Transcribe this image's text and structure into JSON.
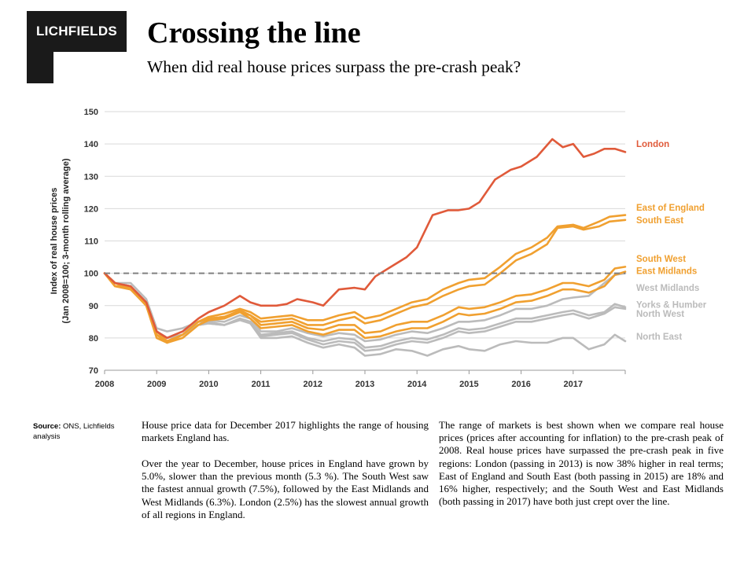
{
  "logo": {
    "text": "LICHFIELDS"
  },
  "header": {
    "title": "Crossing the line",
    "subtitle": "When did real house prices surpass the pre-crash peak?"
  },
  "source": {
    "label": "Source:",
    "text": "ONS, Lichfields analysis"
  },
  "text": {
    "p1": "House price data for December 2017 highlights the range of housing markets England has.",
    "p2": "Over the year to December, house prices in England have grown by 5.0%, slower than the previous month (5.3 %). The South West saw the fastest annual growth (7.5%), followed by the East Midlands and West Midlands (6.3%). London (2.5%) has the slowest annual growth of all regions in England.",
    "p3": "The range of markets is best shown when we compare real house prices (prices after accounting for inflation) to the pre-crash peak of 2008. Real house prices have surpassed the pre-crash peak in five regions: London (passing in 2013) is now 38% higher in real terms; East of England and South East (both passing in 2015) are 18% and 16% higher, respectively; and the South West and East Midlands (both passing in 2017) have both just crept over the line."
  },
  "chart_data": {
    "type": "line",
    "ylabel": "Index of real house prices (Jan 2008=100; 3-month rolling average)",
    "xlabel": "",
    "ylim": [
      70,
      150
    ],
    "yticks": [
      70,
      80,
      90,
      100,
      110,
      120,
      130,
      140,
      150
    ],
    "xlim": [
      2008,
      2018
    ],
    "xticks": [
      "2008",
      "2009",
      "2010",
      "2011",
      "2012",
      "2013",
      "2014",
      "2015",
      "2016",
      "2017"
    ],
    "reference_line": {
      "y": 100,
      "style": "dashed"
    },
    "grid": "horizontal",
    "colors": {
      "london": "#e05a3a",
      "orange": "#f0a030",
      "grey": "#bbbbbb",
      "reference": "#808080"
    },
    "series": [
      {
        "name": "London",
        "color": "#e05a3a",
        "x": [
          2008,
          2008.2,
          2008.5,
          2008.8,
          2009.0,
          2009.2,
          2009.5,
          2009.8,
          2010.0,
          2010.3,
          2010.6,
          2010.8,
          2011.0,
          2011.3,
          2011.5,
          2011.7,
          2012.0,
          2012.2,
          2012.5,
          2012.8,
          2013.0,
          2013.2,
          2013.5,
          2013.8,
          2014.0,
          2014.3,
          2014.6,
          2014.8,
          2015.0,
          2015.2,
          2015.5,
          2015.8,
          2016.0,
          2016.3,
          2016.6,
          2016.8,
          2017.0,
          2017.2,
          2017.4,
          2017.6,
          2017.8,
          2018.0
        ],
        "values": [
          100,
          97,
          96,
          91,
          82,
          80,
          82,
          86,
          88,
          90,
          93,
          91,
          90,
          90,
          90.5,
          92,
          91,
          90,
          95,
          95.5,
          95,
          99,
          102,
          105,
          108,
          118,
          119.5,
          119.5,
          120,
          122,
          129,
          132,
          133,
          136,
          141.5,
          139,
          140,
          136,
          137,
          138.5,
          138.5,
          137.5
        ]
      },
      {
        "name": "East of England",
        "color": "#f0a030",
        "x": [
          2008,
          2008.2,
          2008.5,
          2008.8,
          2009.0,
          2009.2,
          2009.5,
          2009.8,
          2010.0,
          2010.3,
          2010.6,
          2010.8,
          2011.0,
          2011.3,
          2011.6,
          2011.9,
          2012.2,
          2012.5,
          2012.8,
          2013.0,
          2013.3,
          2013.6,
          2013.9,
          2014.2,
          2014.5,
          2014.8,
          2015.0,
          2015.3,
          2015.6,
          2015.9,
          2016.2,
          2016.5,
          2016.7,
          2017.0,
          2017.2,
          2017.5,
          2017.7,
          2018.0
        ],
        "values": [
          100,
          97,
          95,
          91,
          82,
          79,
          81,
          85,
          86.5,
          87.5,
          89,
          88,
          86,
          86.5,
          87,
          85.5,
          85.5,
          87,
          88,
          86,
          87,
          89,
          91,
          92,
          95,
          97,
          98,
          98.5,
          102,
          106,
          108,
          111,
          114.5,
          115,
          114,
          116,
          117.5,
          118
        ]
      },
      {
        "name": "South East",
        "color": "#f0a030",
        "x": [
          2008,
          2008.2,
          2008.5,
          2008.8,
          2009.0,
          2009.2,
          2009.5,
          2009.8,
          2010.0,
          2010.3,
          2010.6,
          2010.8,
          2011.0,
          2011.3,
          2011.6,
          2011.9,
          2012.2,
          2012.5,
          2012.8,
          2013.0,
          2013.3,
          2013.6,
          2013.9,
          2014.2,
          2014.5,
          2014.8,
          2015.0,
          2015.3,
          2015.6,
          2015.9,
          2016.2,
          2016.5,
          2016.7,
          2017.0,
          2017.2,
          2017.5,
          2017.7,
          2018.0
        ],
        "values": [
          100,
          96,
          95,
          90,
          81,
          79,
          81,
          85,
          86,
          86.5,
          88,
          87,
          85,
          85.5,
          86,
          84,
          84,
          85.5,
          86.5,
          84.5,
          85.5,
          87.5,
          89.5,
          90.5,
          93,
          95,
          96,
          96.5,
          100,
          104,
          106,
          109,
          114,
          114.5,
          113.5,
          114.5,
          116,
          116.5
        ]
      },
      {
        "name": "South West",
        "color": "#f0a030",
        "x": [
          2008,
          2008.2,
          2008.5,
          2008.8,
          2009.0,
          2009.2,
          2009.5,
          2009.8,
          2010.0,
          2010.3,
          2010.6,
          2010.8,
          2011.0,
          2011.3,
          2011.6,
          2011.9,
          2012.2,
          2012.5,
          2012.8,
          2013.0,
          2013.3,
          2013.6,
          2013.9,
          2014.2,
          2014.5,
          2014.8,
          2015.0,
          2015.3,
          2015.6,
          2015.9,
          2016.2,
          2016.5,
          2016.8,
          2017.0,
          2017.3,
          2017.6,
          2017.8,
          2018.0
        ],
        "values": [
          100,
          96,
          95.5,
          90,
          81,
          78.5,
          81,
          85,
          86,
          86.5,
          88.5,
          87,
          84,
          84.5,
          85,
          83,
          82.5,
          84,
          84,
          81.5,
          82,
          84,
          85,
          85,
          87,
          89.5,
          89,
          89.5,
          91,
          93,
          93.5,
          95,
          97,
          97,
          96,
          98,
          101.5,
          102
        ]
      },
      {
        "name": "East Midlands",
        "color": "#f0a030",
        "x": [
          2008,
          2008.2,
          2008.5,
          2008.8,
          2009.0,
          2009.2,
          2009.5,
          2009.8,
          2010.0,
          2010.3,
          2010.6,
          2010.8,
          2011.0,
          2011.3,
          2011.6,
          2011.9,
          2012.2,
          2012.5,
          2012.8,
          2013.0,
          2013.3,
          2013.6,
          2013.9,
          2014.2,
          2014.5,
          2014.8,
          2015.0,
          2015.3,
          2015.6,
          2015.9,
          2016.2,
          2016.5,
          2016.8,
          2017.0,
          2017.3,
          2017.6,
          2017.8,
          2018.0
        ],
        "values": [
          100,
          96,
          95.5,
          90,
          80,
          78.5,
          80,
          84,
          85.5,
          86,
          88,
          86,
          83,
          83.5,
          84,
          82,
          81,
          82.5,
          82.5,
          80,
          80.5,
          82,
          83,
          83,
          85,
          87.5,
          87,
          87.5,
          89,
          91,
          91.5,
          93,
          95,
          95,
          94,
          96,
          99.5,
          100.5
        ]
      },
      {
        "name": "West Midlands",
        "color": "#bbbbbb",
        "x": [
          2008,
          2008.2,
          2008.5,
          2008.8,
          2009.0,
          2009.2,
          2009.5,
          2009.8,
          2010.0,
          2010.3,
          2010.6,
          2010.8,
          2011.0,
          2011.3,
          2011.6,
          2011.9,
          2012.2,
          2012.5,
          2012.8,
          2013.0,
          2013.3,
          2013.6,
          2013.9,
          2014.2,
          2014.5,
          2014.8,
          2015.0,
          2015.3,
          2015.6,
          2015.9,
          2016.2,
          2016.5,
          2016.8,
          2017.0,
          2017.3,
          2017.6,
          2017.8,
          2018.0
        ],
        "values": [
          100,
          97,
          96,
          91,
          82,
          80,
          82,
          85,
          85.5,
          85,
          87,
          86,
          82,
          82,
          83,
          81.5,
          80.5,
          81.5,
          81,
          79,
          79.5,
          81,
          82,
          81.5,
          83,
          85,
          85,
          85.5,
          87,
          89,
          89,
          90,
          92,
          92.5,
          93,
          97,
          99.5,
          100
        ]
      },
      {
        "name": "Yorks & Humber",
        "color": "#bbbbbb",
        "x": [
          2008,
          2008.2,
          2008.5,
          2008.8,
          2009.0,
          2009.2,
          2009.5,
          2009.8,
          2010.0,
          2010.3,
          2010.6,
          2010.8,
          2011.0,
          2011.3,
          2011.6,
          2011.9,
          2012.2,
          2012.5,
          2012.8,
          2013.0,
          2013.3,
          2013.6,
          2013.9,
          2014.2,
          2014.5,
          2014.8,
          2015.0,
          2015.3,
          2015.6,
          2015.9,
          2016.2,
          2016.5,
          2016.8,
          2017.0,
          2017.3,
          2017.6,
          2017.8,
          2018.0
        ],
        "values": [
          100,
          97,
          96,
          91,
          82,
          80,
          81,
          84,
          84.5,
          84,
          86,
          85,
          81,
          81.5,
          82,
          80,
          79,
          80,
          79.5,
          77,
          77.5,
          79,
          80,
          79.5,
          81,
          83,
          82.5,
          83,
          84.5,
          86,
          86,
          87,
          88,
          88.5,
          87,
          88,
          90.5,
          89.5
        ]
      },
      {
        "name": "North West",
        "color": "#bbbbbb",
        "x": [
          2008,
          2008.2,
          2008.5,
          2008.8,
          2009.0,
          2009.2,
          2009.5,
          2009.8,
          2010.0,
          2010.3,
          2010.6,
          2010.8,
          2011.0,
          2011.3,
          2011.6,
          2011.9,
          2012.2,
          2012.5,
          2012.8,
          2013.0,
          2013.3,
          2013.6,
          2013.9,
          2014.2,
          2014.5,
          2014.8,
          2015.0,
          2015.3,
          2015.6,
          2015.9,
          2016.2,
          2016.5,
          2016.8,
          2017.0,
          2017.3,
          2017.6,
          2017.8,
          2018.0
        ],
        "values": [
          100,
          97,
          96,
          91,
          82,
          80,
          81,
          84,
          84.5,
          84,
          85.5,
          84.5,
          80.5,
          81,
          81.5,
          79.5,
          78,
          79,
          78.5,
          76,
          76.5,
          78,
          79,
          78.5,
          80,
          82,
          81.5,
          82,
          83.5,
          85,
          85,
          86,
          87,
          87.5,
          86,
          87.5,
          89.5,
          89
        ]
      },
      {
        "name": "North East",
        "color": "#bbbbbb",
        "x": [
          2008,
          2008.2,
          2008.5,
          2008.8,
          2009.0,
          2009.2,
          2009.5,
          2009.8,
          2010.0,
          2010.3,
          2010.6,
          2010.8,
          2011.0,
          2011.3,
          2011.6,
          2011.9,
          2012.2,
          2012.5,
          2012.8,
          2013.0,
          2013.3,
          2013.6,
          2013.9,
          2014.2,
          2014.5,
          2014.8,
          2015.0,
          2015.3,
          2015.6,
          2015.9,
          2016.2,
          2016.5,
          2016.8,
          2017.0,
          2017.3,
          2017.6,
          2017.8,
          2018.0
        ],
        "values": [
          100,
          97,
          97,
          92,
          83,
          82,
          83,
          85,
          85,
          84,
          86,
          84.5,
          80,
          80,
          80.5,
          78.5,
          77,
          78,
          77,
          74.5,
          75,
          76.5,
          76,
          74.5,
          76.5,
          77.5,
          76.5,
          76,
          78,
          79,
          78.5,
          78.5,
          80,
          80,
          76.5,
          78,
          81,
          79
        ]
      }
    ]
  }
}
